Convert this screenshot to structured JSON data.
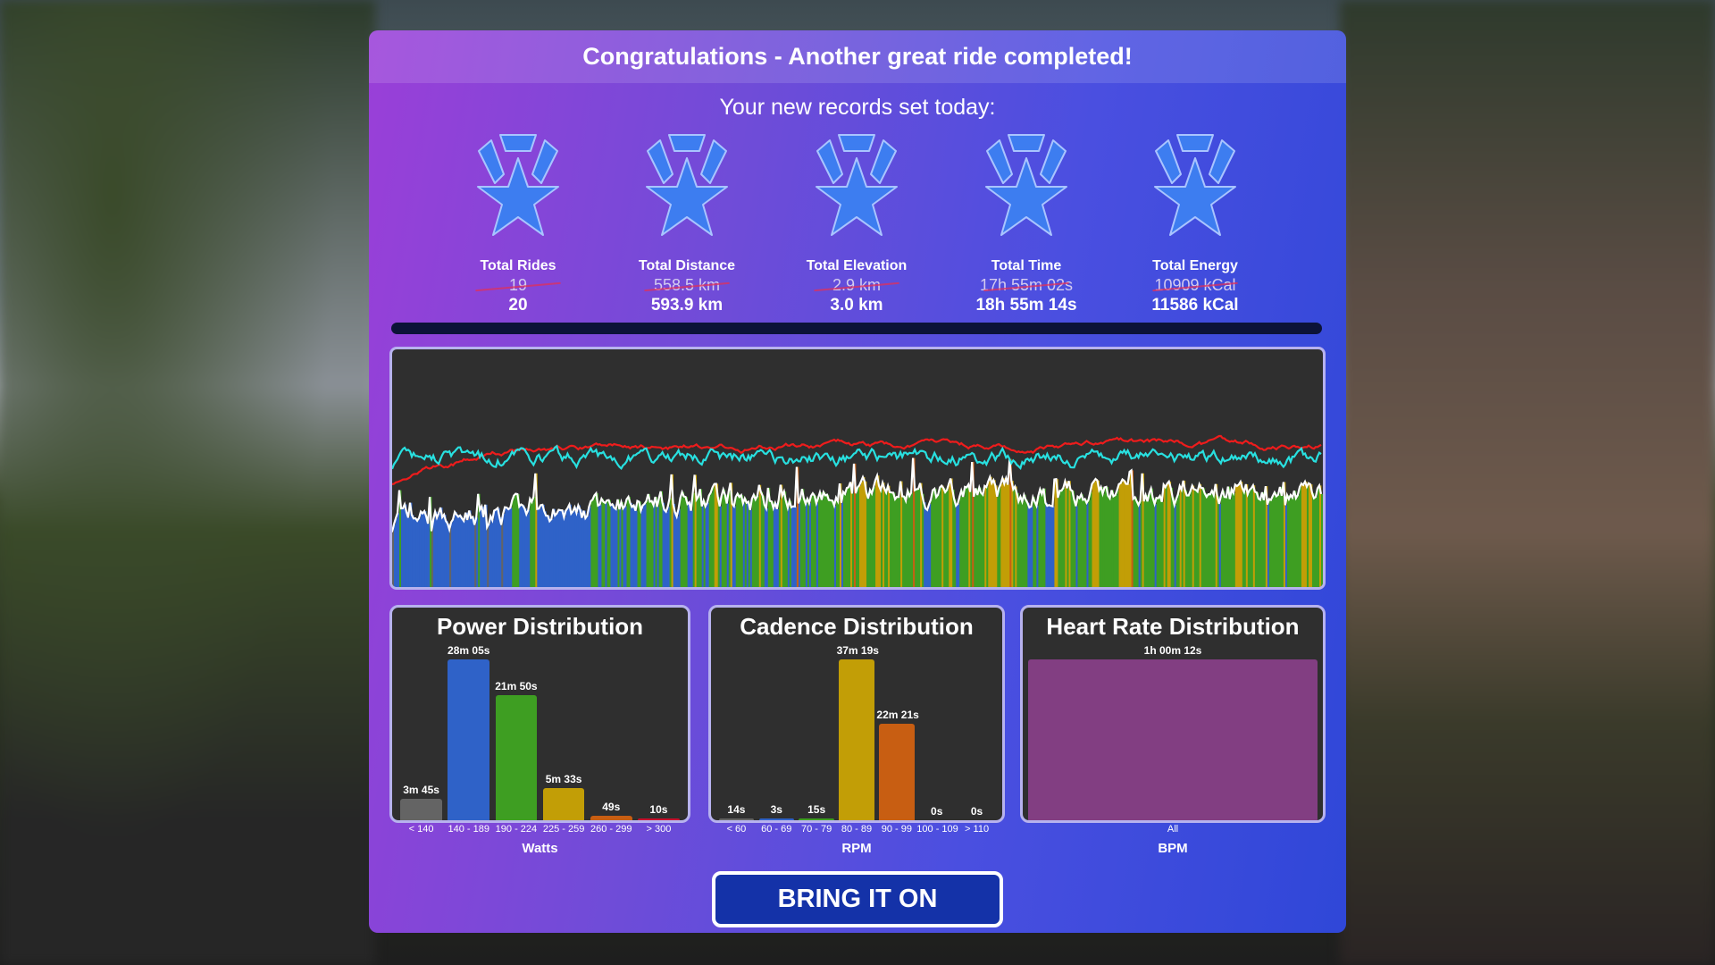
{
  "title": "Congratulations - Another great ride completed!",
  "subtitle": "Your new records set today:",
  "records": [
    {
      "label": "Total Rides",
      "old": "19",
      "new": "20"
    },
    {
      "label": "Total Distance",
      "old": "558.5 km",
      "new": "593.9 km"
    },
    {
      "label": "Total Elevation",
      "old": "2.9 km",
      "new": "3.0 km"
    },
    {
      "label": "Total Time",
      "old": "17h 55m 02s",
      "new": "18h 55m 14s"
    },
    {
      "label": "Total Energy",
      "old": "10909 kCal",
      "new": "11586 kCal"
    }
  ],
  "icons": {
    "record": "medal-star-icon"
  },
  "colors": {
    "medal": "#3d7df0",
    "power_line": "#ffffff",
    "heart_rate_line": "#ee1c1c",
    "cadence_line": "#28e0e0"
  },
  "chart_data": [
    {
      "type": "bar",
      "title": "Power Distribution",
      "xlabel": "Watts",
      "categories": [
        "< 140",
        "140 - 189",
        "190 - 224",
        "225 - 259",
        "260 - 299",
        "> 300"
      ],
      "labels": [
        "3m 45s",
        "28m 05s",
        "21m 50s",
        "5m 33s",
        "49s",
        "10s"
      ],
      "values_seconds": [
        225,
        1685,
        1310,
        333,
        49,
        10
      ],
      "colors": [
        "#646464",
        "#2f62c8",
        "#3e9e22",
        "#c29e06",
        "#c85e12",
        "#c8102e"
      ]
    },
    {
      "type": "bar",
      "title": "Cadence Distribution",
      "xlabel": "RPM",
      "categories": [
        "< 60",
        "60 - 69",
        "70 - 79",
        "80 - 89",
        "90 - 99",
        "100 - 109",
        "> 110"
      ],
      "labels": [
        "14s",
        "3s",
        "15s",
        "37m 19s",
        "22m 21s",
        "0s",
        "0s"
      ],
      "values_seconds": [
        14,
        3,
        15,
        2239,
        1341,
        0,
        0
      ],
      "colors": [
        "#646464",
        "#2f62c8",
        "#3e9e22",
        "#c29e06",
        "#c85e12",
        "#c8102e",
        "#c8102e"
      ]
    },
    {
      "type": "bar",
      "title": "Heart Rate Distribution",
      "xlabel": "BPM",
      "categories": [
        "All"
      ],
      "labels": [
        "1h 00m 12s"
      ],
      "values_seconds": [
        3612
      ],
      "colors": [
        "#823e82"
      ]
    }
  ],
  "button": {
    "label": "BRING IT ON"
  }
}
